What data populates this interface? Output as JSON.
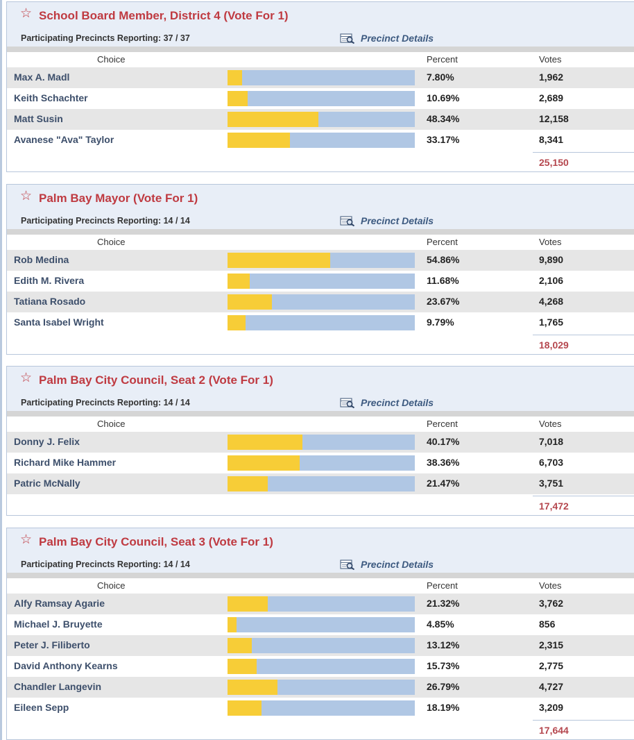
{
  "labels": {
    "choice": "Choice",
    "percent": "Percent",
    "votes": "Votes",
    "precinct_details": "Precinct Details",
    "reporting_prefix": "Participating Precincts Reporting: "
  },
  "icons": {
    "race_star": "star-outline-icon",
    "details": "precinct-details-icon"
  },
  "colors": {
    "title": "#bf3a41",
    "bar_fill": "#f7cd37",
    "bar_track": "#b0c7e4",
    "total": "#b5474e"
  },
  "races": [
    {
      "title": "School Board Member, District 4 (Vote For 1)",
      "reporting": "37 / 37",
      "total": "25,150",
      "candidates": [
        {
          "name": "Max A. Madl",
          "percent": "7.80%",
          "share": 7.8,
          "votes": "1,962"
        },
        {
          "name": "Keith Schachter",
          "percent": "10.69%",
          "share": 10.69,
          "votes": "2,689"
        },
        {
          "name": "Matt Susin",
          "percent": "48.34%",
          "share": 48.34,
          "votes": "12,158"
        },
        {
          "name": "Avanese \"Ava\" Taylor",
          "percent": "33.17%",
          "share": 33.17,
          "votes": "8,341"
        }
      ]
    },
    {
      "title": "Palm Bay Mayor (Vote For 1)",
      "reporting": "14 / 14",
      "total": "18,029",
      "candidates": [
        {
          "name": "Rob Medina",
          "percent": "54.86%",
          "share": 54.86,
          "votes": "9,890"
        },
        {
          "name": "Edith M. Rivera",
          "percent": "11.68%",
          "share": 11.68,
          "votes": "2,106"
        },
        {
          "name": "Tatiana Rosado",
          "percent": "23.67%",
          "share": 23.67,
          "votes": "4,268"
        },
        {
          "name": "Santa Isabel Wright",
          "percent": "9.79%",
          "share": 9.79,
          "votes": "1,765"
        }
      ]
    },
    {
      "title": "Palm Bay City Council, Seat 2 (Vote For 1)",
      "reporting": "14 / 14",
      "total": "17,472",
      "candidates": [
        {
          "name": "Donny J. Felix",
          "percent": "40.17%",
          "share": 40.17,
          "votes": "7,018"
        },
        {
          "name": "Richard Mike Hammer",
          "percent": "38.36%",
          "share": 38.36,
          "votes": "6,703"
        },
        {
          "name": "Patric McNally",
          "percent": "21.47%",
          "share": 21.47,
          "votes": "3,751"
        }
      ]
    },
    {
      "title": "Palm Bay City Council, Seat 3 (Vote For 1)",
      "reporting": "14 / 14",
      "total": "17,644",
      "candidates": [
        {
          "name": "Alfy Ramsay Agarie",
          "percent": "21.32%",
          "share": 21.32,
          "votes": "3,762"
        },
        {
          "name": "Michael J. Bruyette",
          "percent": "4.85%",
          "share": 4.85,
          "votes": "856"
        },
        {
          "name": "Peter J. Filiberto",
          "percent": "13.12%",
          "share": 13.12,
          "votes": "2,315"
        },
        {
          "name": "David Anthony Kearns",
          "percent": "15.73%",
          "share": 15.73,
          "votes": "2,775"
        },
        {
          "name": "Chandler Langevin",
          "percent": "26.79%",
          "share": 26.79,
          "votes": "4,727"
        },
        {
          "name": "Eileen Sepp",
          "percent": "18.19%",
          "share": 18.19,
          "votes": "3,209"
        }
      ]
    }
  ]
}
